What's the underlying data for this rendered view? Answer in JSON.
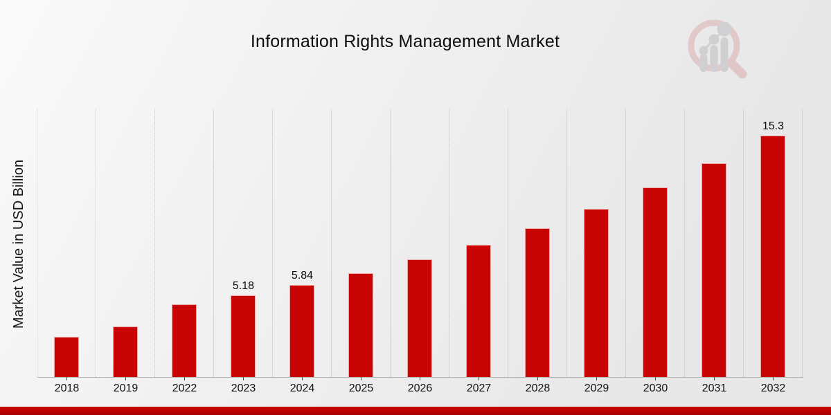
{
  "page": {
    "title": "Information Rights Management Market",
    "footer_accent_color": "#bb0202"
  },
  "chart_data": {
    "type": "bar",
    "title": "Information Rights Management Market",
    "xlabel": "",
    "ylabel": "Market Value in USD Billion",
    "categories": [
      "2018",
      "2019",
      "2022",
      "2023",
      "2024",
      "2025",
      "2026",
      "2027",
      "2028",
      "2029",
      "2030",
      "2031",
      "2032"
    ],
    "values": [
      2.55,
      3.2,
      4.61,
      5.18,
      5.84,
      6.59,
      7.45,
      8.4,
      9.46,
      10.68,
      12.05,
      13.58,
      15.3
    ],
    "data_labels": {
      "2023": "5.18",
      "2024": "5.84",
      "2032": "15.3"
    },
    "bar_color": "#c90404",
    "ylim": [
      0,
      17
    ],
    "grid": "vertical-dotted",
    "legend": "none"
  },
  "watermark": {
    "icon": "magnifier-bar-chart-logo",
    "ring_color": "#dcaaaa",
    "bars_color": "#b9b9be"
  }
}
